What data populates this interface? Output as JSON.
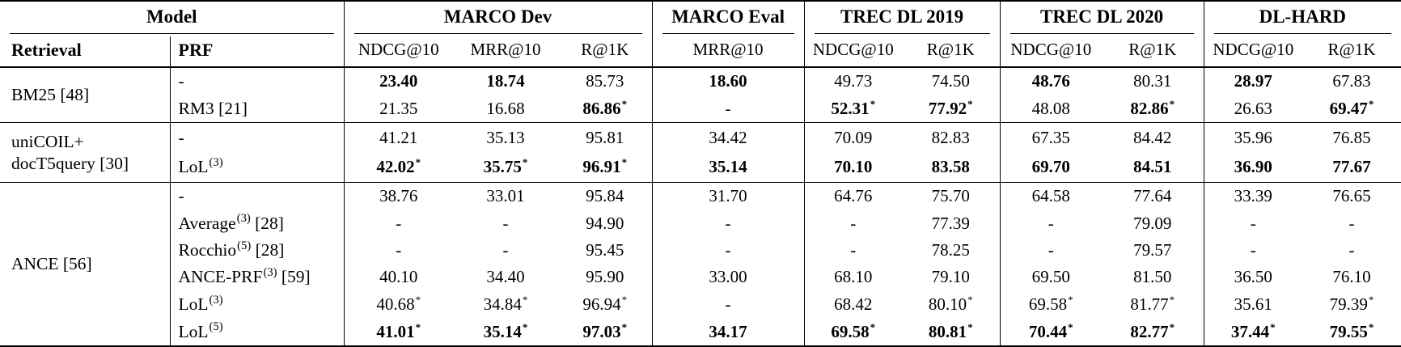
{
  "table": {
    "cell_format": "[value, is_bold, has_asterisk]",
    "header": {
      "groups": [
        {
          "label": "Model",
          "span": 2
        },
        {
          "label": "MARCO Dev",
          "span": 3
        },
        {
          "label": "MARCO Eval",
          "span": 1
        },
        {
          "label": "TREC DL 2019",
          "span": 2
        },
        {
          "label": "TREC DL 2020",
          "span": 2
        },
        {
          "label": "DL-HARD",
          "span": 2
        }
      ],
      "subcols": [
        "Retrieval",
        "PRF",
        "NDCG@10",
        "MRR@10",
        "R@1K",
        "MRR@10",
        "NDCG@10",
        "R@1K",
        "NDCG@10",
        "R@1K",
        "NDCG@10",
        "R@1K"
      ]
    },
    "row_groups": [
      {
        "retrieval": "BM25 [48]",
        "rows": [
          {
            "prf": "-",
            "prf_sup": "",
            "prf_tail": "",
            "cells": [
              [
                "23.40",
                1,
                0
              ],
              [
                "18.74",
                1,
                0
              ],
              [
                "85.73",
                0,
                0
              ],
              [
                "18.60",
                1,
                0
              ],
              [
                "49.73",
                0,
                0
              ],
              [
                "74.50",
                0,
                0
              ],
              [
                "48.76",
                1,
                0
              ],
              [
                "80.31",
                0,
                0
              ],
              [
                "28.97",
                1,
                0
              ],
              [
                "67.83",
                0,
                0
              ]
            ]
          },
          {
            "prf": "RM3",
            "prf_sup": "",
            "prf_tail": " [21]",
            "cells": [
              [
                "21.35",
                0,
                0
              ],
              [
                "16.68",
                0,
                0
              ],
              [
                "86.86",
                1,
                1
              ],
              [
                "-",
                0,
                0
              ],
              [
                "52.31",
                1,
                1
              ],
              [
                "77.92",
                1,
                1
              ],
              [
                "48.08",
                0,
                0
              ],
              [
                "82.86",
                1,
                1
              ],
              [
                "26.63",
                0,
                0
              ],
              [
                "69.47",
                1,
                1
              ]
            ]
          }
        ]
      },
      {
        "retrieval": "uniCOIL+\ndocT5query [30]",
        "rows": [
          {
            "prf": "-",
            "prf_sup": "",
            "prf_tail": "",
            "cells": [
              [
                "41.21",
                0,
                0
              ],
              [
                "35.13",
                0,
                0
              ],
              [
                "95.81",
                0,
                0
              ],
              [
                "34.42",
                0,
                0
              ],
              [
                "70.09",
                0,
                0
              ],
              [
                "82.83",
                0,
                0
              ],
              [
                "67.35",
                0,
                0
              ],
              [
                "84.42",
                0,
                0
              ],
              [
                "35.96",
                0,
                0
              ],
              [
                "76.85",
                0,
                0
              ]
            ]
          },
          {
            "prf": "LoL",
            "prf_sup": "(3)",
            "prf_tail": "",
            "cells": [
              [
                "42.02",
                1,
                1
              ],
              [
                "35.75",
                1,
                1
              ],
              [
                "96.91",
                1,
                1
              ],
              [
                "35.14",
                1,
                0
              ],
              [
                "70.10",
                1,
                0
              ],
              [
                "83.58",
                1,
                0
              ],
              [
                "69.70",
                1,
                0
              ],
              [
                "84.51",
                1,
                0
              ],
              [
                "36.90",
                1,
                0
              ],
              [
                "77.67",
                1,
                0
              ]
            ]
          }
        ]
      },
      {
        "retrieval": "ANCE [56]",
        "rows": [
          {
            "prf": "-",
            "prf_sup": "",
            "prf_tail": "",
            "cells": [
              [
                "38.76",
                0,
                0
              ],
              [
                "33.01",
                0,
                0
              ],
              [
                "95.84",
                0,
                0
              ],
              [
                "31.70",
                0,
                0
              ],
              [
                "64.76",
                0,
                0
              ],
              [
                "75.70",
                0,
                0
              ],
              [
                "64.58",
                0,
                0
              ],
              [
                "77.64",
                0,
                0
              ],
              [
                "33.39",
                0,
                0
              ],
              [
                "76.65",
                0,
                0
              ]
            ]
          },
          {
            "prf": "Average",
            "prf_sup": "(3)",
            "prf_tail": " [28]",
            "cells": [
              [
                "-",
                0,
                0
              ],
              [
                "-",
                0,
                0
              ],
              [
                "94.90",
                0,
                0
              ],
              [
                "-",
                0,
                0
              ],
              [
                "-",
                0,
                0
              ],
              [
                "77.39",
                0,
                0
              ],
              [
                "-",
                0,
                0
              ],
              [
                "79.09",
                0,
                0
              ],
              [
                "-",
                0,
                0
              ],
              [
                "-",
                0,
                0
              ]
            ]
          },
          {
            "prf": "Rocchio",
            "prf_sup": "(5)",
            "prf_tail": " [28]",
            "cells": [
              [
                "-",
                0,
                0
              ],
              [
                "-",
                0,
                0
              ],
              [
                "95.45",
                0,
                0
              ],
              [
                "-",
                0,
                0
              ],
              [
                "-",
                0,
                0
              ],
              [
                "78.25",
                0,
                0
              ],
              [
                "-",
                0,
                0
              ],
              [
                "79.57",
                0,
                0
              ],
              [
                "-",
                0,
                0
              ],
              [
                "-",
                0,
                0
              ]
            ]
          },
          {
            "prf": "ANCE-PRF",
            "prf_sup": "(3)",
            "prf_tail": " [59]",
            "cells": [
              [
                "40.10",
                0,
                0
              ],
              [
                "34.40",
                0,
                0
              ],
              [
                "95.90",
                0,
                0
              ],
              [
                "33.00",
                0,
                0
              ],
              [
                "68.10",
                0,
                0
              ],
              [
                "79.10",
                0,
                0
              ],
              [
                "69.50",
                0,
                0
              ],
              [
                "81.50",
                0,
                0
              ],
              [
                "36.50",
                0,
                0
              ],
              [
                "76.10",
                0,
                0
              ]
            ]
          },
          {
            "prf": "LoL",
            "prf_sup": "(3)",
            "prf_tail": "",
            "cells": [
              [
                "40.68",
                0,
                1
              ],
              [
                "34.84",
                0,
                1
              ],
              [
                "96.94",
                0,
                1
              ],
              [
                "-",
                0,
                0
              ],
              [
                "68.42",
                0,
                0
              ],
              [
                "80.10",
                0,
                1
              ],
              [
                "69.58",
                0,
                1
              ],
              [
                "81.77",
                0,
                1
              ],
              [
                "35.61",
                0,
                0
              ],
              [
                "79.39",
                0,
                1
              ]
            ]
          },
          {
            "prf": "LoL",
            "prf_sup": "(5)",
            "prf_tail": "",
            "cells": [
              [
                "41.01",
                1,
                1
              ],
              [
                "35.14",
                1,
                1
              ],
              [
                "97.03",
                1,
                1
              ],
              [
                "34.17",
                1,
                0
              ],
              [
                "69.58",
                1,
                1
              ],
              [
                "80.81",
                1,
                1
              ],
              [
                "70.44",
                1,
                1
              ],
              [
                "82.77",
                1,
                1
              ],
              [
                "37.44",
                1,
                1
              ],
              [
                "79.55",
                1,
                1
              ]
            ]
          }
        ]
      }
    ],
    "colors": {
      "text": "#000000",
      "background": "#ffffff",
      "rule": "#000000"
    }
  }
}
